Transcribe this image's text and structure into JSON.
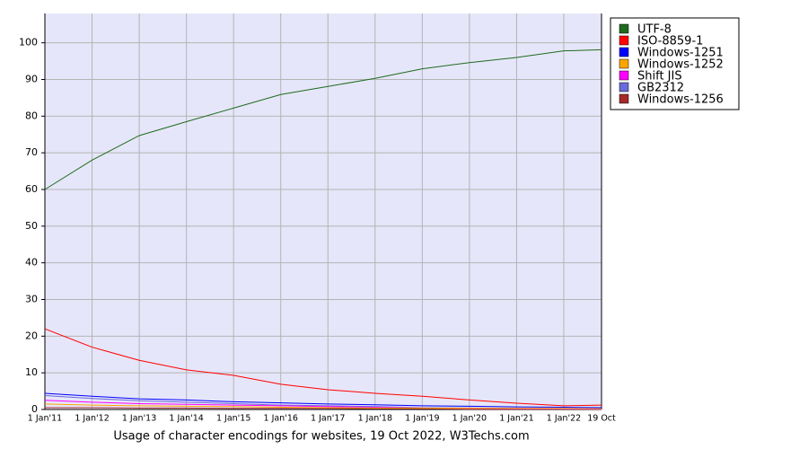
{
  "chart_data": {
    "type": "line",
    "title": "Usage of character encodings for websites, 19 Oct 2022, W3Techs.com",
    "x": [
      2011,
      2012,
      2013,
      2014,
      2015,
      2016,
      2017,
      2018,
      2019,
      2020,
      2021,
      2022,
      2022.8
    ],
    "xlim": [
      2011,
      2022.8
    ],
    "xticks": [
      {
        "value": 2011,
        "label": "1 Jan'11"
      },
      {
        "value": 2012,
        "label": "1 Jan'12"
      },
      {
        "value": 2013,
        "label": "1 Jan'13"
      },
      {
        "value": 2014,
        "label": "1 Jan'14"
      },
      {
        "value": 2015,
        "label": "1 Jan'15"
      },
      {
        "value": 2016,
        "label": "1 Jan'16"
      },
      {
        "value": 2017,
        "label": "1 Jan'17"
      },
      {
        "value": 2018,
        "label": "1 Jan'18"
      },
      {
        "value": 2019,
        "label": "1 Jan'19"
      },
      {
        "value": 2020,
        "label": "1 Jan'20"
      },
      {
        "value": 2021,
        "label": "1 Jan'21"
      },
      {
        "value": 2022,
        "label": "1 Jan'22"
      },
      {
        "value": 2022.8,
        "label": "19 Oct"
      }
    ],
    "ylim": [
      0,
      108
    ],
    "yticks": [
      0,
      10,
      20,
      30,
      40,
      50,
      60,
      70,
      80,
      90,
      100
    ],
    "grid": true,
    "legend": "right",
    "series": [
      {
        "name": "UTF-8",
        "color": "#1e6b1e",
        "values": [
          60,
          68,
          74.7,
          78.5,
          82.2,
          85.9,
          88.1,
          90.3,
          92.9,
          94.6,
          96,
          97.8,
          98.1
        ]
      },
      {
        "name": "ISO-8859-1",
        "color": "#ff0000",
        "values": [
          22,
          17,
          13.4,
          10.8,
          9.3,
          6.9,
          5.4,
          4.4,
          3.6,
          2.6,
          1.7,
          1,
          1.2
        ]
      },
      {
        "name": "Windows-1251",
        "color": "#0000ff",
        "values": [
          4.4,
          3.6,
          2.9,
          2.6,
          2.1,
          1.8,
          1.5,
          1.3,
          1,
          0.9,
          0.7,
          0.6,
          0.5
        ]
      },
      {
        "name": "Windows-1252",
        "color": "#ffa500",
        "values": [
          1.5,
          1.2,
          1,
          0.9,
          0.8,
          0.6,
          0.5,
          0.4,
          0.4,
          0.3,
          0.3,
          0.3,
          0.2
        ]
      },
      {
        "name": "Shift JIS",
        "color": "#ff00ff",
        "values": [
          2.5,
          2,
          1.6,
          1.4,
          1.2,
          1,
          0.8,
          0.6,
          0.4,
          0.3,
          0.2,
          0.2,
          0.1
        ]
      },
      {
        "name": "GB2312",
        "color": "#6a6ad8",
        "values": [
          3.8,
          3,
          2.4,
          2,
          1.6,
          1.2,
          1,
          0.8,
          0.5,
          0.4,
          0.3,
          0.2,
          0.2
        ]
      },
      {
        "name": "Windows-1256",
        "color": "#a52a2a",
        "values": [
          0.5,
          0.5,
          0.4,
          0.4,
          0.3,
          0.3,
          0.3,
          0.2,
          0.2,
          0.1,
          0.1,
          0.1,
          0.1
        ]
      }
    ]
  }
}
